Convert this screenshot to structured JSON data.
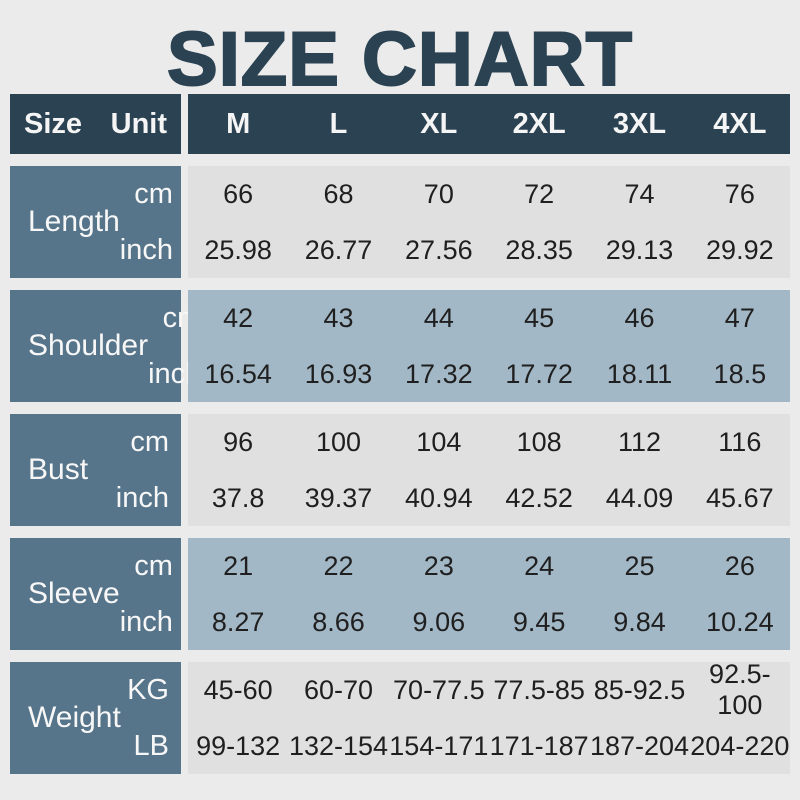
{
  "page_title": "SIZE CHART",
  "colors": {
    "page_bg": "#ebebeb",
    "title_text": "#2b4252",
    "header_bg": "#2b4252",
    "label_bg": "#56748a",
    "row_light_bg": "#e0e0e0",
    "row_blue_bg": "#a3b8c6",
    "value_text": "#1f1f1f",
    "header_text": "#f5f5f5"
  },
  "chart_data": {
    "type": "table",
    "title": "SIZE CHART",
    "columns": [
      "Size",
      "Unit",
      "M",
      "L",
      "XL",
      "2XL",
      "3XL",
      "4XL"
    ],
    "row_groups": [
      "Length",
      "Shoulder",
      "Bust",
      "Sleeve",
      "Weight"
    ],
    "rows": [
      [
        "Length",
        "cm",
        "66",
        "68",
        "70",
        "72",
        "74",
        "76"
      ],
      [
        "Length",
        "inch",
        "25.98",
        "26.77",
        "27.56",
        "28.35",
        "29.13",
        "29.92"
      ],
      [
        "Shoulder",
        "cm",
        "42",
        "43",
        "44",
        "45",
        "46",
        "47"
      ],
      [
        "Shoulder",
        "inch",
        "16.54",
        "16.93",
        "17.32",
        "17.72",
        "18.11",
        "18.5"
      ],
      [
        "Bust",
        "cm",
        "96",
        "100",
        "104",
        "108",
        "112",
        "116"
      ],
      [
        "Bust",
        "inch",
        "37.8",
        "39.37",
        "40.94",
        "42.52",
        "44.09",
        "45.67"
      ],
      [
        "Sleeve",
        "cm",
        "21",
        "22",
        "23",
        "24",
        "25",
        "26"
      ],
      [
        "Sleeve",
        "inch",
        "8.27",
        "8.66",
        "9.06",
        "9.45",
        "9.84",
        "10.24"
      ],
      [
        "Weight",
        "KG",
        "45-60",
        "60-70",
        "70-77.5",
        "77.5-85",
        "85-92.5",
        "92.5-100"
      ],
      [
        "Weight",
        "LB",
        "99-132",
        "132-154",
        "154-171",
        "171-187",
        "187-204",
        "204-220"
      ]
    ]
  }
}
